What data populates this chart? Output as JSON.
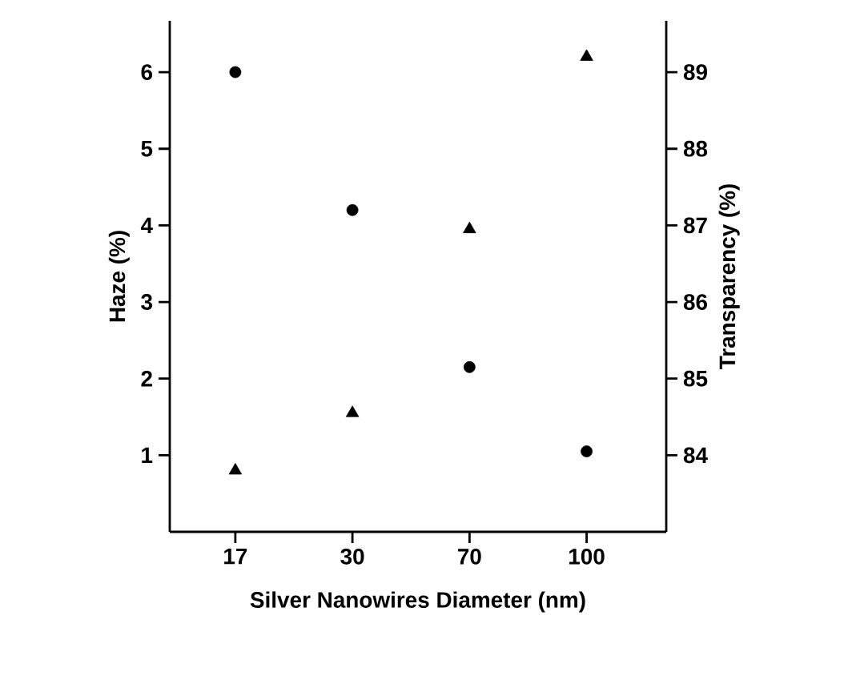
{
  "chart_data": {
    "type": "scatter",
    "xlabel": "Silver Nanowires Diameter (nm)",
    "ylabel": "Haze (%)",
    "y2label": "Transparency (%)",
    "categories": [
      "17",
      "30",
      "70",
      "100"
    ],
    "series": [
      {
        "color": "#000000",
        "marker": "triangle",
        "values": [
          0.8,
          1.55,
          3.95,
          6.2
        ]
      },
      {
        "color": "#000000",
        "marker": "circle",
        "axis": "y2",
        "values": [
          89.0,
          87.2,
          85.15,
          84.05
        ]
      }
    ],
    "ylim": [
      0,
      6.67
    ],
    "yticks": [
      1,
      2,
      3,
      4,
      5,
      6
    ],
    "y2lim": [
      83.0,
      89.67
    ],
    "y2ticks": [
      84,
      85,
      86,
      87,
      88,
      89
    ],
    "grid": false
  }
}
